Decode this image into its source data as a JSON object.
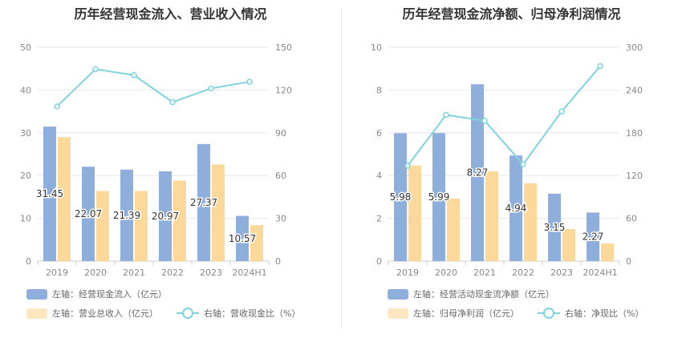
{
  "colors": {
    "bar_primary": "#8eaedb",
    "bar_secondary": "#fcd99b",
    "line": "#7ed3dc",
    "grid": "#e6e6ee",
    "axis_text": "#888888"
  },
  "chart_data": [
    {
      "type": "bar",
      "title": "历年经营现金流入、营业收入情况",
      "categories": [
        "2019",
        "2020",
        "2021",
        "2022",
        "2023",
        "2024H1"
      ],
      "left_axis": {
        "ticks": [
          "0",
          "10",
          "20",
          "30",
          "40",
          "50"
        ],
        "range": [
          0,
          50
        ]
      },
      "right_axis": {
        "ticks": [
          "0",
          "30",
          "60",
          "90",
          "120",
          "150"
        ],
        "range": [
          0,
          150
        ]
      },
      "series": [
        {
          "name": "左轴：经营现金流入（亿元）",
          "axis": "left",
          "type": "bar",
          "values": [
            31.45,
            22.07,
            21.39,
            20.97,
            27.37,
            10.57
          ],
          "labels": [
            "31.45",
            "22.07",
            "21.39",
            "20.97",
            "27.37",
            "10.57"
          ]
        },
        {
          "name": "左轴：营业总收入（亿元）",
          "axis": "left",
          "type": "bar",
          "values": [
            29.0,
            16.4,
            16.4,
            18.8,
            22.6,
            8.4
          ]
        },
        {
          "name": "右轴：营收现金比（%）",
          "axis": "right",
          "type": "line",
          "values": [
            108.5,
            134.6,
            130.4,
            111.5,
            121.1,
            125.8
          ]
        }
      ],
      "grid": true,
      "legend_position": "bottom-left"
    },
    {
      "type": "bar",
      "title": "历年经营现金流净额、归母净利润情况",
      "categories": [
        "2019",
        "2020",
        "2021",
        "2022",
        "2023",
        "2024H1"
      ],
      "left_axis": {
        "ticks": [
          "0",
          "2",
          "4",
          "6",
          "8",
          "10"
        ],
        "range": [
          0,
          10
        ]
      },
      "right_axis": {
        "ticks": [
          "0",
          "60",
          "120",
          "180",
          "240",
          "300"
        ],
        "range": [
          0,
          300
        ]
      },
      "series": [
        {
          "name": "左轴：经营活动现金流净额（亿元）",
          "axis": "left",
          "type": "bar",
          "values": [
            5.98,
            5.99,
            8.27,
            4.94,
            3.15,
            2.27
          ],
          "labels": [
            "5.98",
            "5.99",
            "8.27",
            "4.94",
            "3.15",
            "2.27"
          ]
        },
        {
          "name": "左轴：归母净利润（亿元）",
          "axis": "left",
          "type": "bar",
          "values": [
            4.47,
            2.92,
            4.2,
            3.64,
            1.5,
            0.83
          ]
        },
        {
          "name": "右轴：净现比（%）",
          "axis": "right",
          "type": "line",
          "values": [
            133.8,
            205.1,
            196.9,
            135.7,
            210.0,
            273.5
          ]
        }
      ],
      "grid": true,
      "legend_position": "bottom-left"
    }
  ]
}
